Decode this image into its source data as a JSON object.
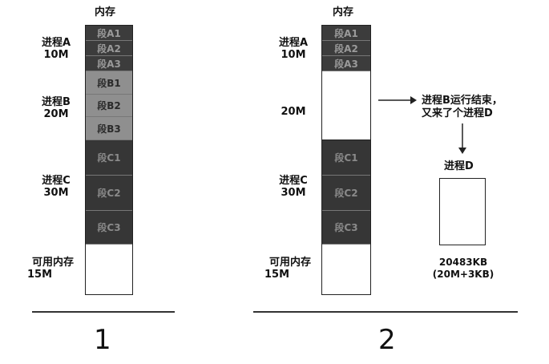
{
  "memory_title": "内存",
  "diagram1": {
    "processes": [
      {
        "name": "进程A",
        "size": "10M"
      },
      {
        "name": "进程B",
        "size": "20M"
      },
      {
        "name": "进程C",
        "size": "30M"
      },
      {
        "name": "可用内存",
        "size": "15M"
      }
    ],
    "segments": [
      "段A1",
      "段A2",
      "段A3",
      "段B1",
      "段B2",
      "段B3",
      "段C1",
      "段C2",
      "段C3"
    ],
    "number": "1"
  },
  "diagram2": {
    "processes": [
      {
        "name": "进程A",
        "size": "10M"
      },
      {
        "name": "",
        "size": "20M"
      },
      {
        "name": "进程C",
        "size": "30M"
      },
      {
        "name": "可用内存",
        "size": "15M"
      }
    ],
    "segments": [
      "段A1",
      "段A2",
      "段A3",
      "段C1",
      "段C2",
      "段C3"
    ],
    "note_line1": "进程B运行结束，",
    "note_line2": "又来了个进程D",
    "process_d_label": "进程D",
    "process_d_size": "20483KB",
    "process_d_size_detail": "(20M+3KB)",
    "number": "2"
  },
  "colors": {
    "segment_a": "#3c3c3c",
    "segment_b": "#8f8f8f",
    "segment_c": "#363636",
    "free": "#ffffff"
  }
}
